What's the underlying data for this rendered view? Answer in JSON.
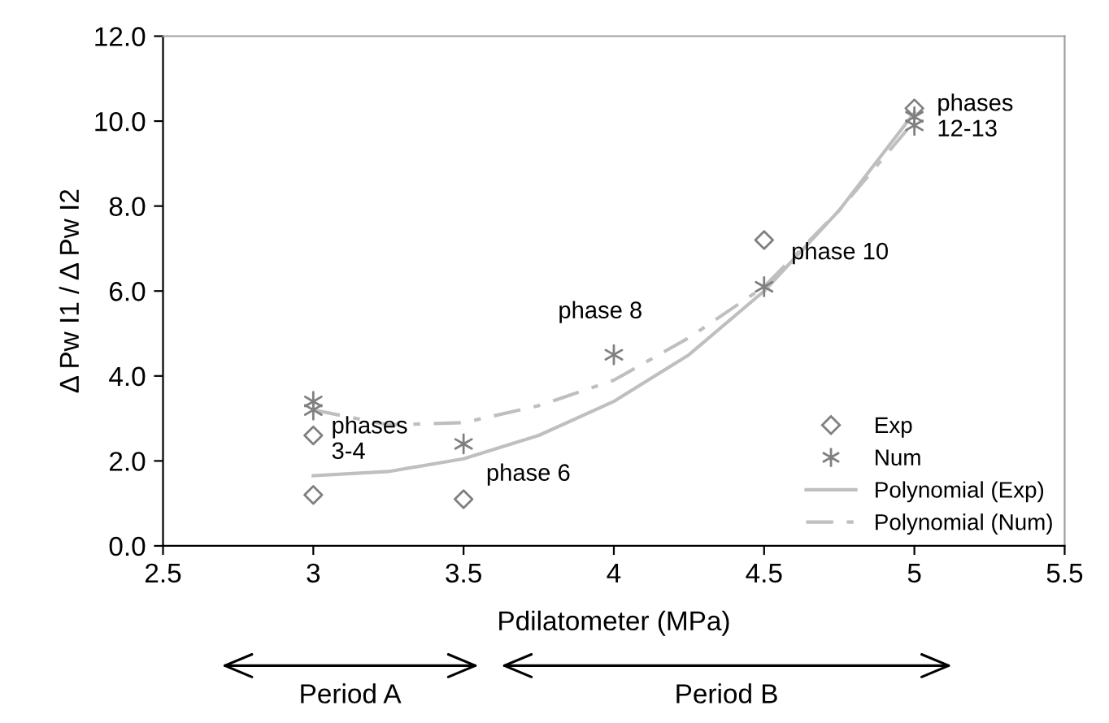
{
  "chart_data": {
    "type": "scatter",
    "xlabel": "Pdilatometer (MPa)",
    "ylabel": "Δ Pw I1 / Δ Pw I2",
    "xlim": [
      2.5,
      5.5
    ],
    "xticks": [
      2.5,
      3,
      3.5,
      4,
      4.5,
      5,
      5.5
    ],
    "ylim": [
      0,
      12
    ],
    "yticks": [
      {
        "value": 0,
        "label": "0.0"
      },
      {
        "value": 2,
        "label": "2.0"
      },
      {
        "value": 4,
        "label": "4.0"
      },
      {
        "value": 6,
        "label": "6.0"
      },
      {
        "value": 8,
        "label": "8.0"
      },
      {
        "value": 10,
        "label": "10.0"
      },
      {
        "value": 12,
        "label": "12.0"
      }
    ],
    "grid": false,
    "legend": "bottom right",
    "series": [
      {
        "name": "Exp",
        "marker": "diamond",
        "color": "#808080",
        "x": [
          3,
          3,
          3.5,
          4.5,
          5
        ],
        "values": [
          2.6,
          1.2,
          1.1,
          7.2,
          10.3
        ]
      },
      {
        "name": "Num",
        "marker": "cross",
        "color": "#808080",
        "x": [
          3,
          3,
          3.5,
          4,
          4.5,
          5,
          5
        ],
        "values": [
          3.4,
          3.2,
          2.4,
          4.5,
          6.1,
          10.1,
          9.9
        ]
      },
      {
        "name": "Polynomial (Exp)",
        "type": "line",
        "line_style": "solid",
        "color": "#bfbfbf",
        "x": [
          3,
          3.25,
          3.5,
          3.75,
          4,
          4.25,
          4.5,
          4.75,
          5
        ],
        "values": [
          1.65,
          1.75,
          2.05,
          2.6,
          3.4,
          4.5,
          6.0,
          7.9,
          10.2
        ]
      },
      {
        "name": "Polynomial (Num)",
        "type": "line",
        "line_style": "dashed",
        "color": "#bfbfbf",
        "x": [
          3,
          3.25,
          3.5,
          3.75,
          4,
          4.25,
          4.5,
          4.75,
          5
        ],
        "values": [
          3.2,
          2.85,
          2.9,
          3.3,
          3.9,
          4.9,
          6.1,
          7.9,
          10.0
        ]
      }
    ],
    "annotations": [
      {
        "text": "phases\n3-4",
        "x": 3,
        "y": 2.6
      },
      {
        "text": "phase 6",
        "x": 3.5,
        "y": 1.1
      },
      {
        "text": "phase 8",
        "x": 4,
        "y": 4.5
      },
      {
        "text": "phase 10",
        "x": 4.5,
        "y": 6.1
      },
      {
        "text": "phases\n12-13",
        "x": 5,
        "y": 10.3
      },
      "Period A",
      "Period B"
    ]
  }
}
